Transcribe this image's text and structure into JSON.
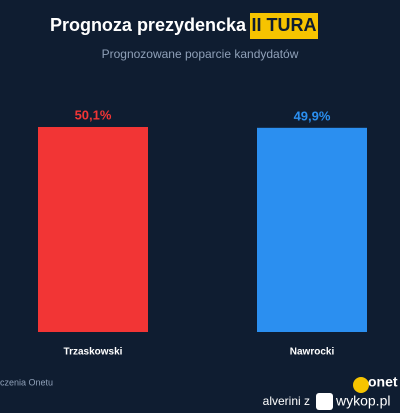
{
  "chart_data": {
    "type": "bar",
    "title": "Prognoza prezydencka",
    "title_highlight": "II TURA",
    "subtitle": "Prognozowane poparcie kandydatów",
    "categories": [
      "Trzaskowski",
      "Nawrocki"
    ],
    "values": [
      50.1,
      49.9
    ],
    "value_labels": [
      "50,1%",
      "49,9%"
    ],
    "colors": [
      "#f23535",
      "#2b8ff0"
    ]
  },
  "footer": {
    "source": "czenia Onetu",
    "logo": "onet",
    "watermark_user": "alverini z",
    "watermark_site": "wykop.pl"
  }
}
